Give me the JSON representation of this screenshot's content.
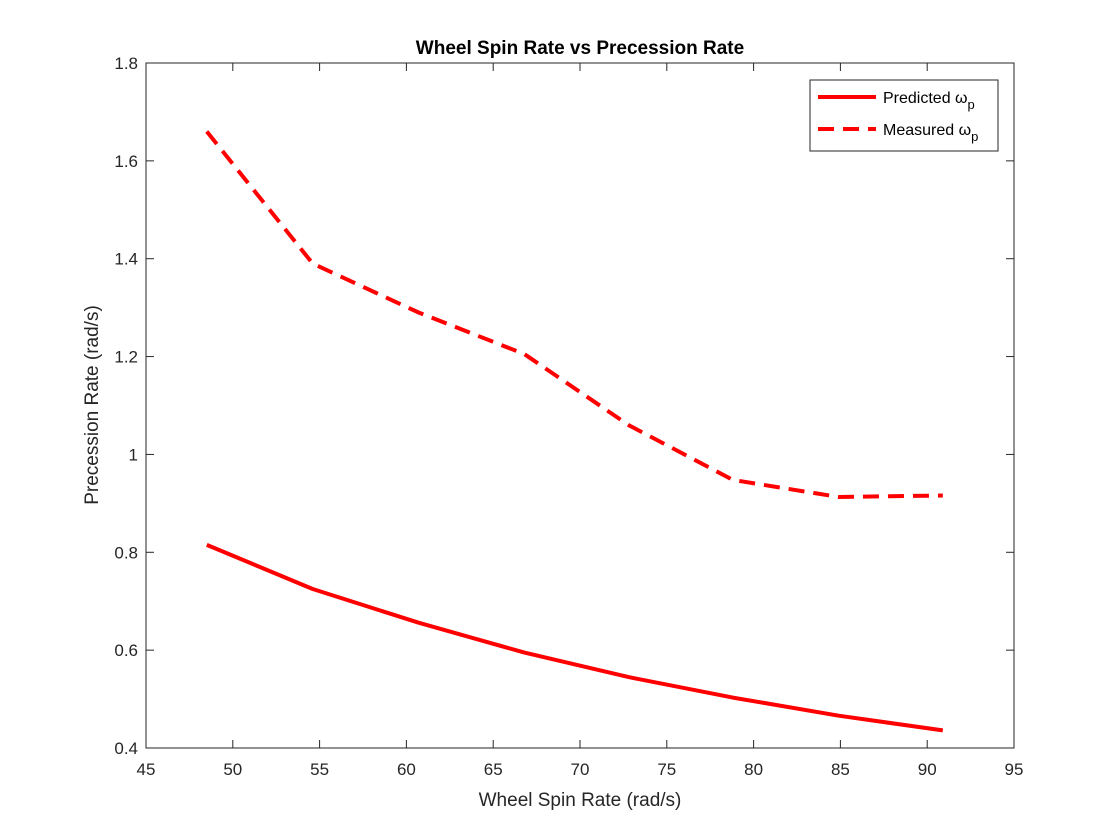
{
  "chart_data": {
    "type": "line",
    "title": "Wheel Spin Rate vs Precession Rate",
    "xlabel": "Wheel Spin Rate (rad/s)",
    "ylabel": "Precession Rate (rad/s)",
    "xlim": [
      45,
      95
    ],
    "ylim": [
      0.4,
      1.8
    ],
    "xticks": [
      45,
      50,
      55,
      60,
      65,
      70,
      75,
      80,
      85,
      90,
      95
    ],
    "yticks": [
      0.4,
      0.6,
      0.8,
      1,
      1.2,
      1.4,
      1.6,
      1.8
    ],
    "xtick_labels": [
      "45",
      "50",
      "55",
      "60",
      "65",
      "70",
      "75",
      "80",
      "85",
      "90",
      "95"
    ],
    "ytick_labels": [
      "0.4",
      "0.6",
      "0.8",
      "1",
      "1.2",
      "1.4",
      "1.6",
      "1.8"
    ],
    "grid": false,
    "legend_position": "top-right",
    "series": [
      {
        "name": "Predicted ω",
        "name_subscript": "p",
        "style": "solid",
        "color": "#ff0000",
        "x": [
          48.5,
          54.6,
          60.7,
          66.8,
          72.8,
          78.8,
          84.9,
          90.9
        ],
        "y": [
          0.815,
          0.725,
          0.656,
          0.595,
          0.545,
          0.503,
          0.466,
          0.436
        ]
      },
      {
        "name": "Measured ω",
        "name_subscript": "p",
        "style": "dashed",
        "color": "#ff0000",
        "x": [
          48.5,
          54.6,
          60.7,
          66.8,
          72.8,
          78.8,
          84.9,
          90.9
        ],
        "y": [
          1.66,
          1.39,
          1.29,
          1.205,
          1.06,
          0.948,
          0.913,
          0.916
        ]
      }
    ]
  }
}
